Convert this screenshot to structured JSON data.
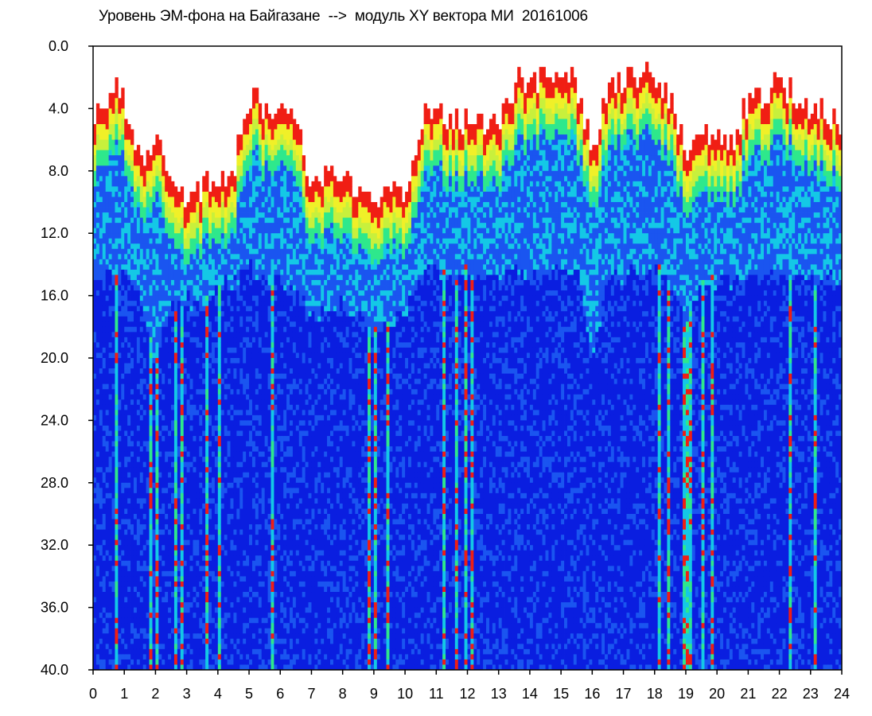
{
  "chart_data": {
    "type": "heatmap",
    "title": "Уровень ЭМ-фона на Байгазане  -->  модуль XY вектора МИ  20161006",
    "xlabel": "",
    "ylabel": "",
    "x_ticks": [
      "0",
      "1",
      "2",
      "3",
      "4",
      "5",
      "6",
      "7",
      "8",
      "9",
      "10",
      "11",
      "12",
      "13",
      "14",
      "15",
      "16",
      "17",
      "18",
      "19",
      "20",
      "21",
      "22",
      "23",
      "24"
    ],
    "y_ticks": [
      "0.0",
      "4.0",
      "8.0",
      "12.0",
      "16.0",
      "20.0",
      "24.0",
      "28.0",
      "32.0",
      "36.0",
      "40.0"
    ],
    "xlim": [
      0,
      24
    ],
    "ylim": [
      0,
      40
    ],
    "y_inverted": true,
    "grid": false,
    "colormap": [
      "#0a1ee0",
      "#1a55f0",
      "#14c8e6",
      "#2ee88c",
      "#c8f03c",
      "#f0f028",
      "#f01e14"
    ],
    "band_profile": {
      "hours": [
        0,
        0.5,
        0.8,
        1,
        1.5,
        2,
        2.5,
        3,
        3.5,
        4,
        4.5,
        5,
        5.5,
        6,
        6.5,
        7,
        7.5,
        8,
        8.5,
        9,
        9.5,
        10,
        10.5,
        11,
        11.5,
        12,
        12.5,
        13,
        13.5,
        14,
        14.5,
        15,
        15.5,
        16,
        16.5,
        17,
        17.5,
        18,
        18.5,
        19,
        19.5,
        20,
        20.5,
        21,
        21.5,
        22,
        22.5,
        23,
        23.5,
        24
      ],
      "peak_top": [
        5.0,
        3.0,
        2.0,
        3.5,
        7.0,
        6.0,
        9.0,
        9.5,
        9.0,
        8.5,
        8.0,
        3.0,
        4.0,
        4.0,
        5.0,
        8.5,
        8.5,
        8.5,
        9.0,
        9.5,
        9.5,
        9.5,
        5.0,
        4.0,
        5.0,
        5.0,
        5.0,
        5.5,
        2.5,
        2.0,
        2.0,
        2.0,
        2.5,
        7.0,
        3.0,
        2.0,
        2.0,
        2.0,
        3.0,
        7.0,
        6.0,
        6.0,
        6.0,
        3.5,
        3.0,
        2.5,
        3.0,
        4.0,
        4.5,
        5.0
      ],
      "band_bottom": [
        15.0,
        15.0,
        14.5,
        15.0,
        16.0,
        20.0,
        17.0,
        16.0,
        16.5,
        15.5,
        15.0,
        14.5,
        14.5,
        15.0,
        16.0,
        17.0,
        17.0,
        16.5,
        17.0,
        18.0,
        18.0,
        17.0,
        14.5,
        14.5,
        14.5,
        14.5,
        14.5,
        15.0,
        14.5,
        14.5,
        14.5,
        14.5,
        14.5,
        20.0,
        15.0,
        14.5,
        14.5,
        14.5,
        14.5,
        18.0,
        15.0,
        15.0,
        15.0,
        15.0,
        15.0,
        15.0,
        15.0,
        15.0,
        15.0,
        15.0
      ]
    }
  }
}
